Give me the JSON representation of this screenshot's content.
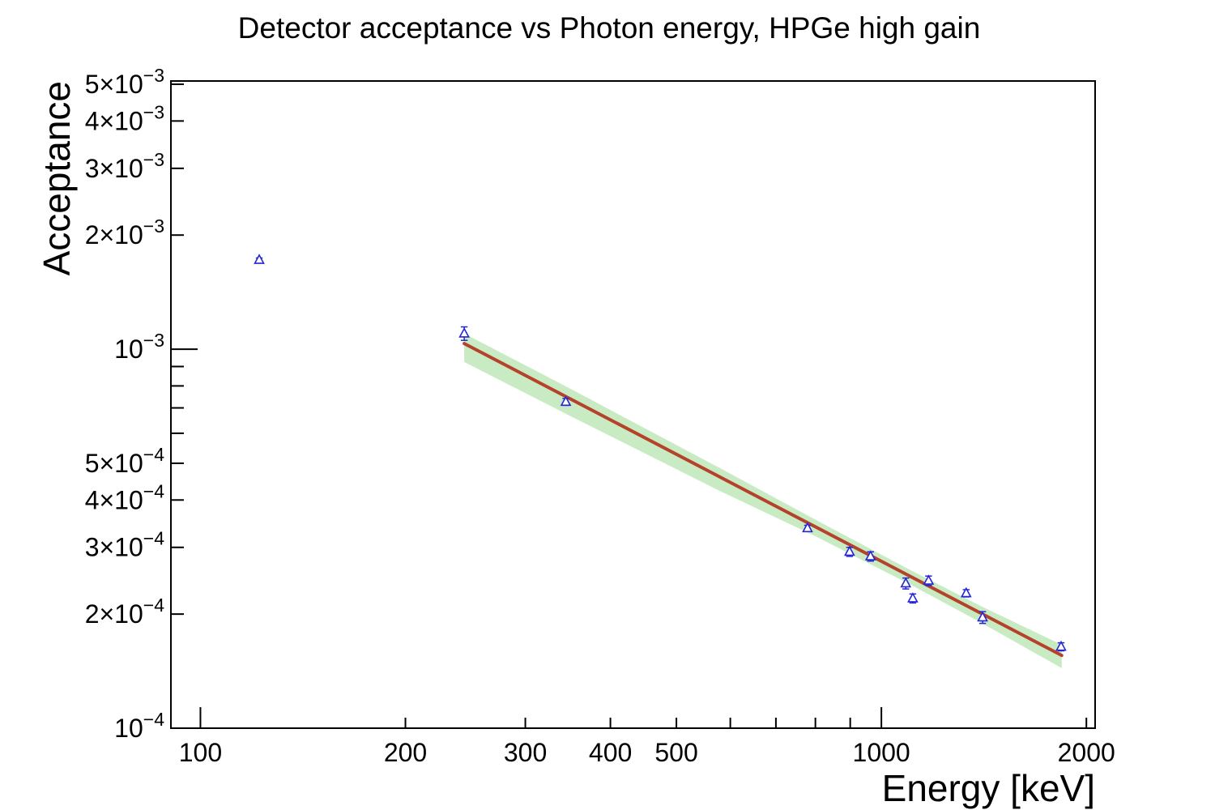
{
  "title": "Detector acceptance vs Photon energy, HPGe high gain",
  "chart_data": {
    "type": "scatter",
    "title": "Detector acceptance vs Photon energy, HPGe high gain",
    "xlabel": "Energy [keV]",
    "ylabel": "Acceptance",
    "x_scale": "log",
    "y_scale": "log",
    "xlim": [
      90.5,
      2060
    ],
    "ylim": [
      0.0001,
      0.0051
    ],
    "grid": false,
    "legend": null,
    "colors": {
      "marker": "#2525d6",
      "fit_line": "#b5422b",
      "band": "#c9ebc4",
      "axis": "#000000",
      "background": "#ffffff"
    },
    "x_ticks": [
      {
        "value": 100,
        "label": "100",
        "major": true
      },
      {
        "value": 200,
        "label": "200",
        "major": false
      },
      {
        "value": 300,
        "label": "300",
        "major": false
      },
      {
        "value": 400,
        "label": "400",
        "major": false
      },
      {
        "value": 500,
        "label": "500",
        "major": false
      },
      {
        "value": 600,
        "label": "",
        "major": false
      },
      {
        "value": 700,
        "label": "",
        "major": false
      },
      {
        "value": 800,
        "label": "",
        "major": false
      },
      {
        "value": 900,
        "label": "",
        "major": false
      },
      {
        "value": 1000,
        "label": "1000",
        "major": true
      },
      {
        "value": 2000,
        "label": "2000",
        "major": false
      }
    ],
    "y_ticks": [
      {
        "value": 0.0001,
        "mantissa": "10",
        "exponent": "−4",
        "major": true
      },
      {
        "value": 0.0002,
        "mantissa": "2×10",
        "exponent": "−4",
        "major": false
      },
      {
        "value": 0.0003,
        "mantissa": "3×10",
        "exponent": "−4",
        "major": false
      },
      {
        "value": 0.0004,
        "mantissa": "4×10",
        "exponent": "−4",
        "major": false
      },
      {
        "value": 0.0005,
        "mantissa": "5×10",
        "exponent": "−4",
        "major": false
      },
      {
        "value": 0.0006,
        "mantissa": "",
        "exponent": "",
        "major": false
      },
      {
        "value": 0.0007,
        "mantissa": "",
        "exponent": "",
        "major": false
      },
      {
        "value": 0.0008,
        "mantissa": "",
        "exponent": "",
        "major": false
      },
      {
        "value": 0.0009,
        "mantissa": "",
        "exponent": "",
        "major": false
      },
      {
        "value": 0.001,
        "mantissa": "10",
        "exponent": "−3",
        "major": true
      },
      {
        "value": 0.002,
        "mantissa": "2×10",
        "exponent": "−3",
        "major": false
      },
      {
        "value": 0.003,
        "mantissa": "3×10",
        "exponent": "−3",
        "major": false
      },
      {
        "value": 0.004,
        "mantissa": "4×10",
        "exponent": "−3",
        "major": false
      },
      {
        "value": 0.005,
        "mantissa": "5×10",
        "exponent": "−3",
        "major": false
      }
    ],
    "series": [
      {
        "name": "acceptance-data",
        "marker": "open-triangle-up",
        "points": [
          {
            "energy_keV": 122,
            "acceptance": 0.00172,
            "error": 2e-05
          },
          {
            "energy_keV": 244,
            "acceptance": 0.0011,
            "error": 4.5e-05
          },
          {
            "energy_keV": 344,
            "acceptance": 0.000726,
            "error": 1.5e-05
          },
          {
            "energy_keV": 779,
            "acceptance": 0.000337,
            "error": 6e-06
          },
          {
            "energy_keV": 898,
            "acceptance": 0.000292,
            "error": 8e-06
          },
          {
            "energy_keV": 964,
            "acceptance": 0.000284,
            "error": 8e-06
          },
          {
            "energy_keV": 1086,
            "acceptance": 0.000241,
            "error": 8e-06
          },
          {
            "energy_keV": 1112,
            "acceptance": 0.00022,
            "error": 6e-06
          },
          {
            "energy_keV": 1173,
            "acceptance": 0.000245,
            "error": 7e-06
          },
          {
            "energy_keV": 1332,
            "acceptance": 0.000227,
            "error": 5e-06
          },
          {
            "energy_keV": 1408,
            "acceptance": 0.000196,
            "error": 7e-06
          },
          {
            "energy_keV": 1836,
            "acceptance": 0.000164,
            "error": 4e-06
          }
        ]
      },
      {
        "name": "power-law-fit",
        "kind": "fit-line",
        "E_start": 244,
        "E_end": 1840,
        "value_start": 0.001035,
        "value_end": 0.0001556,
        "exponent": -0.94
      },
      {
        "name": "confidence-band",
        "kind": "band",
        "points": [
          {
            "energy_keV": 244,
            "lower": 0.000925,
            "upper": 0.0011
          },
          {
            "energy_keV": 350,
            "lower": 0.000665,
            "upper": 0.000785
          },
          {
            "energy_keV": 580,
            "lower": 0.000422,
            "upper": 0.000485
          },
          {
            "energy_keV": 800,
            "lower": 0.000321,
            "upper": 0.000355
          },
          {
            "energy_keV": 1100,
            "lower": 0.00024,
            "upper": 0.000262
          },
          {
            "energy_keV": 1400,
            "lower": 0.00019,
            "upper": 0.00021
          },
          {
            "energy_keV": 1840,
            "lower": 0.000144,
            "upper": 0.000166
          }
        ]
      }
    ]
  }
}
